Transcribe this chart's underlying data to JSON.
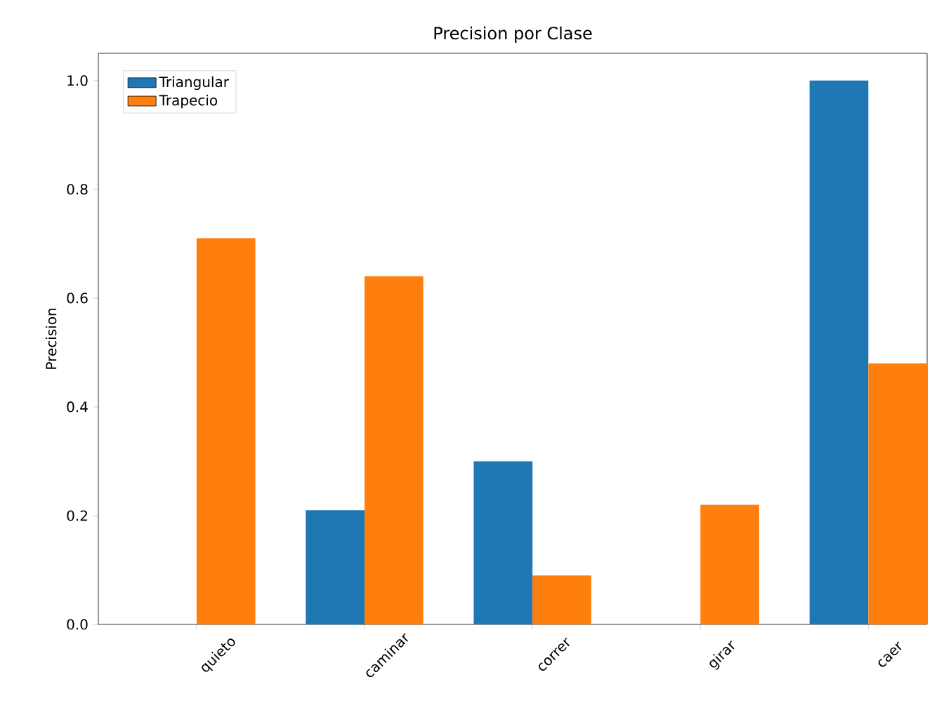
{
  "chart_data": {
    "type": "bar",
    "title": "Precision por Clase",
    "ylabel": "Precision",
    "categories": [
      "quieto",
      "caminar",
      "correr",
      "girar",
      "caer"
    ],
    "series": [
      {
        "name": "Triangular",
        "color": "#1f77b4",
        "values": [
          0,
          0.21,
          0.3,
          0,
          1.0
        ]
      },
      {
        "name": "Trapecio",
        "color": "#ff7f0e",
        "values": [
          0.71,
          0.64,
          0.09,
          0.22,
          0.48
        ]
      }
    ],
    "ylim": [
      0,
      1.05
    ],
    "yticks": [
      {
        "value": 0,
        "label": "0.0"
      },
      {
        "value": 0.2,
        "label": "0.2"
      },
      {
        "value": 0.4,
        "label": "0.4"
      },
      {
        "value": 0.6,
        "label": "0.6"
      },
      {
        "value": 0.8,
        "label": "0.8"
      },
      {
        "value": 1.0,
        "label": "1.0"
      }
    ],
    "legend": "top left",
    "grid": false
  }
}
